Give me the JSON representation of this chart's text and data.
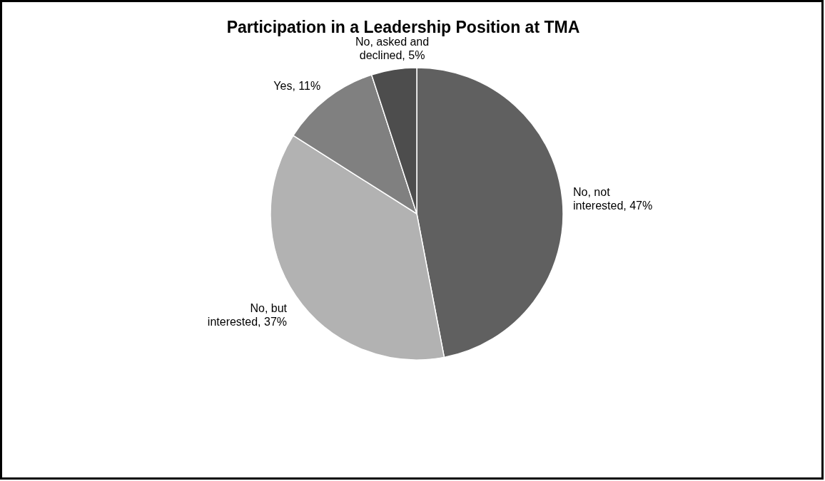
{
  "chart_data": {
    "type": "pie",
    "title": "Participation in a Leadership Position at TMA",
    "categories": [
      "No, not interested",
      "No, but interested",
      "Yes",
      "No, asked and declined"
    ],
    "values": [
      47,
      37,
      11,
      5
    ],
    "value_labels": [
      "47%",
      "37%",
      "11%",
      "5%"
    ],
    "colors": [
      "#606060",
      "#b2b2b2",
      "#808080",
      "#4d4d4d"
    ]
  }
}
